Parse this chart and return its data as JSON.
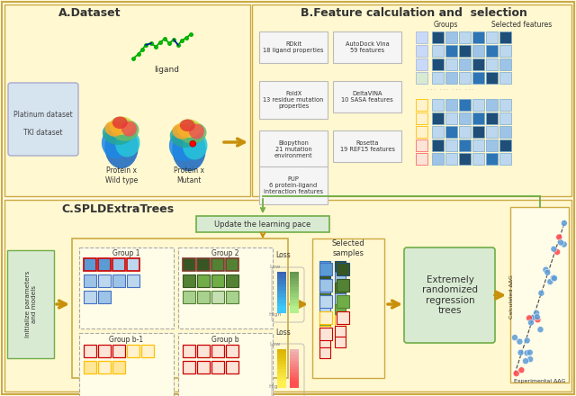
{
  "bg_color": "#FFFCE8",
  "panel_bg": "#FFF8D0",
  "panel_A_title": "A.Dataset",
  "panel_B_title": "B.Feature calculation and  selection",
  "panel_C_title": "C.SPLDExtraTrees",
  "box_gray": "#F0F0F0",
  "box_gray_ec": "#BBBBBB",
  "blue1": "#5B9BD5",
  "blue2": "#9DC3E6",
  "blue3": "#BDD7EE",
  "blue4": "#DEEAF1",
  "green1": "#375623",
  "green2": "#548235",
  "green3": "#70AD47",
  "green4": "#A9D18E",
  "green5": "#C6E0B4",
  "yellow1": "#FFF2CC",
  "yellow2": "#FFE699",
  "yellow_ec": "#FFC000",
  "pink1": "#FCE4D6",
  "pink2": "#F4B8A0",
  "pink_ec": "#FF0000",
  "arrow_color": "#C8900A",
  "green_arrow": "#70AD47",
  "green_box": "#D9EAD3"
}
